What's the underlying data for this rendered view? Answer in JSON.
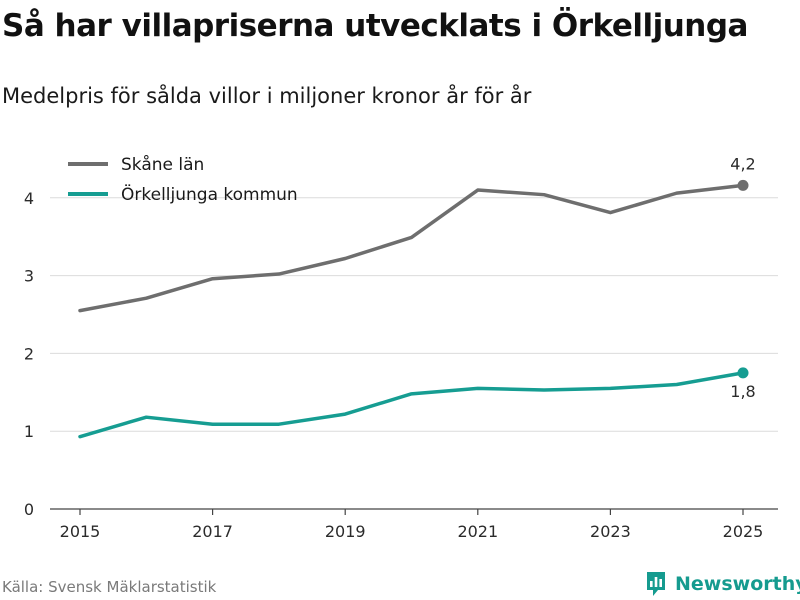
{
  "header": {
    "title": "Så har villapriserna utvecklats i Örkelljunga",
    "subtitle": "Medelpris för sålda villor i miljoner kronor år för år"
  },
  "footer": {
    "source": "Källa: Svensk Mäklarstatistik",
    "brand": "Newsworthy",
    "brand_icon": "newsworthy-logo-icon",
    "brand_color": "#159b8f"
  },
  "chart_data": {
    "type": "line",
    "title": "Så har villapriserna utvecklats i Örkelljunga",
    "subtitle": "Medelpris för sålda villor i miljoner kronor år för år",
    "xlabel": "",
    "ylabel": "",
    "x": [
      2015,
      2016,
      2017,
      2018,
      2019,
      2020,
      2021,
      2022,
      2023,
      2024,
      2025
    ],
    "x_ticks": [
      "2015",
      "2017",
      "2019",
      "2021",
      "2023",
      "2025"
    ],
    "y_ticks": [
      "0",
      "1",
      "2",
      "3",
      "4"
    ],
    "xlim": [
      2014.5,
      2025.5
    ],
    "ylim": [
      0,
      4.5
    ],
    "grid": true,
    "legend_position": "top-left",
    "series": [
      {
        "name": "Skåne län",
        "color": "#6e6e6e",
        "values": [
          2.55,
          2.71,
          2.96,
          3.02,
          3.22,
          3.49,
          4.1,
          4.04,
          3.81,
          4.06,
          4.16
        ],
        "end_label": "4,2"
      },
      {
        "name": "Örkelljunga kommun",
        "color": "#169d92",
        "values": [
          0.93,
          1.18,
          1.09,
          1.09,
          1.22,
          1.48,
          1.55,
          1.53,
          1.55,
          1.6,
          1.75
        ],
        "end_label": "1,8"
      }
    ]
  }
}
